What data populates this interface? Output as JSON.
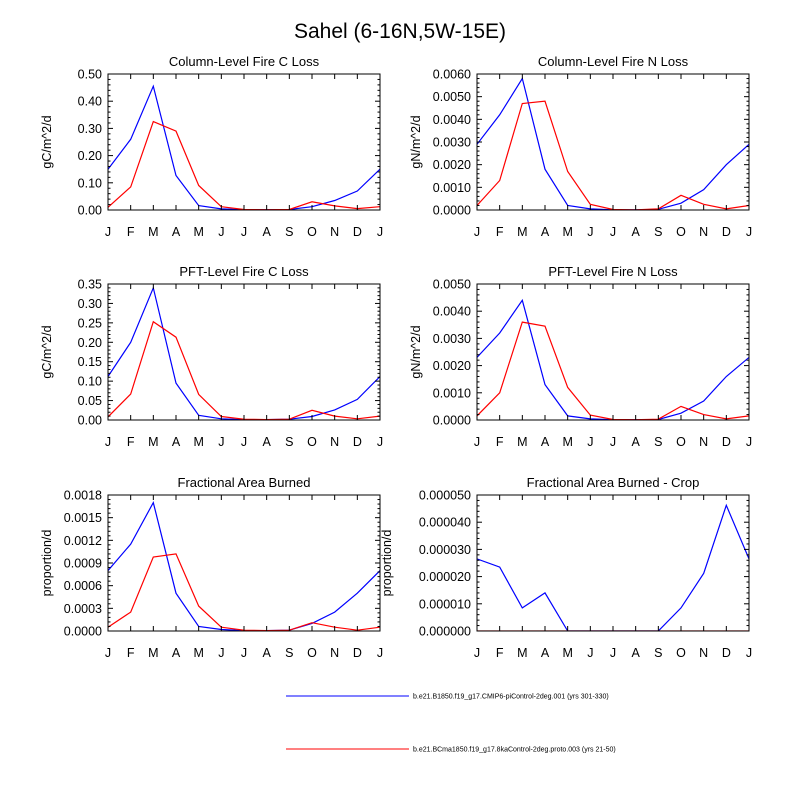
{
  "figure": {
    "title": "Sahel (6-16N,5W-15E)"
  },
  "colors": {
    "series1": "#0000ff",
    "series2": "#ff0000",
    "axis": "#000000"
  },
  "legend": {
    "placement": "bottom-right",
    "entries": [
      {
        "label": "b.e21.B1850.f19_g17.CMIP6-piControl-2deg.001 (yrs 301-330)",
        "color": "#0000ff"
      },
      {
        "label": "b.e21.BCma1850.f19_g17.8kaControl-2deg.proto.003 (yrs 21-50)",
        "color": "#ff0000"
      }
    ]
  },
  "chart_data": [
    {
      "type": "line",
      "title": "Column-Level Fire C Loss",
      "xlabel": "",
      "ylabel": "gC/m^2/d",
      "categories": [
        "J",
        "F",
        "M",
        "A",
        "M",
        "J",
        "J",
        "A",
        "S",
        "O",
        "N",
        "D",
        "J"
      ],
      "ylim": [
        0,
        0.5
      ],
      "yticks": [
        "0.00",
        "0.10",
        "0.20",
        "0.30",
        "0.40",
        "0.50"
      ],
      "series": [
        {
          "name": "b.e21.B1850.f19_g17.CMIP6-piControl-2deg.001 (yrs 301-330)",
          "values": [
            0.15,
            0.26,
            0.455,
            0.127,
            0.016,
            0.004,
            0.001,
            0.001,
            0.002,
            0.012,
            0.035,
            0.07,
            0.15
          ]
        },
        {
          "name": "b.e21.BCma1850.f19_g17.8kaControl-2deg.proto.003 (yrs 21-50)",
          "values": [
            0.01,
            0.085,
            0.325,
            0.29,
            0.09,
            0.012,
            0.002,
            0.001,
            0.002,
            0.03,
            0.015,
            0.005,
            0.012
          ]
        }
      ]
    },
    {
      "type": "line",
      "title": "Column-Level Fire N Loss",
      "xlabel": "",
      "ylabel": "gN/m^2/d",
      "categories": [
        "J",
        "F",
        "M",
        "A",
        "M",
        "J",
        "J",
        "A",
        "S",
        "O",
        "N",
        "D",
        "J"
      ],
      "ylim": [
        0,
        0.006
      ],
      "yticks": [
        "0.0000",
        "0.0010",
        "0.0020",
        "0.0030",
        "0.0040",
        "0.0050",
        "0.0060"
      ],
      "series": [
        {
          "name": "b.e21.B1850.f19_g17.CMIP6-piControl-2deg.001 (yrs 301-330)",
          "values": [
            0.0029,
            0.0042,
            0.0058,
            0.0018,
            0.0002,
            5e-05,
            1e-05,
            1e-05,
            3e-05,
            0.0003,
            0.0009,
            0.002,
            0.0029
          ]
        },
        {
          "name": "b.e21.BCma1850.f19_g17.8kaControl-2deg.proto.003 (yrs 21-50)",
          "values": [
            0.0002,
            0.0013,
            0.0047,
            0.0048,
            0.0017,
            0.00025,
            2e-05,
            1e-05,
            5e-05,
            0.00065,
            0.00025,
            5e-05,
            0.0002
          ]
        }
      ]
    },
    {
      "type": "line",
      "title": "PFT-Level Fire C Loss",
      "xlabel": "",
      "ylabel": "gC/m^2/d",
      "categories": [
        "J",
        "F",
        "M",
        "A",
        "M",
        "J",
        "J",
        "A",
        "S",
        "O",
        "N",
        "D",
        "J"
      ],
      "ylim": [
        0,
        0.35
      ],
      "yticks": [
        "0.00",
        "0.05",
        "0.10",
        "0.15",
        "0.20",
        "0.25",
        "0.30",
        "0.35"
      ],
      "series": [
        {
          "name": "b.e21.B1850.f19_g17.CMIP6-piControl-2deg.001 (yrs 301-330)",
          "values": [
            0.112,
            0.2,
            0.34,
            0.095,
            0.012,
            0.003,
            0.001,
            0.001,
            0.002,
            0.009,
            0.026,
            0.053,
            0.112
          ]
        },
        {
          "name": "b.e21.BCma1850.f19_g17.8kaControl-2deg.proto.003 (yrs 21-50)",
          "values": [
            0.008,
            0.067,
            0.253,
            0.213,
            0.066,
            0.009,
            0.002,
            0.001,
            0.002,
            0.025,
            0.01,
            0.003,
            0.01
          ]
        }
      ]
    },
    {
      "type": "line",
      "title": "PFT-Level Fire N Loss",
      "xlabel": "",
      "ylabel": "gN/m^2/d",
      "categories": [
        "J",
        "F",
        "M",
        "A",
        "M",
        "J",
        "J",
        "A",
        "S",
        "O",
        "N",
        "D",
        "J"
      ],
      "ylim": [
        0,
        0.005
      ],
      "yticks": [
        "0.0000",
        "0.0010",
        "0.0020",
        "0.0030",
        "0.0040",
        "0.0050"
      ],
      "series": [
        {
          "name": "b.e21.B1850.f19_g17.CMIP6-piControl-2deg.001 (yrs 301-330)",
          "values": [
            0.0023,
            0.0032,
            0.0044,
            0.0013,
            0.00015,
            4e-05,
            1e-05,
            1e-05,
            2e-05,
            0.00025,
            0.0007,
            0.0016,
            0.0023
          ]
        },
        {
          "name": "b.e21.BCma1850.f19_g17.8kaControl-2deg.proto.003 (yrs 21-50)",
          "values": [
            0.00015,
            0.001,
            0.0036,
            0.00345,
            0.0012,
            0.00018,
            2e-05,
            1e-05,
            3e-05,
            0.0005,
            0.0002,
            4e-05,
            0.00015
          ]
        }
      ]
    },
    {
      "type": "line",
      "title": "Fractional Area Burned",
      "xlabel": "",
      "ylabel": "proportion/d",
      "categories": [
        "J",
        "F",
        "M",
        "A",
        "M",
        "J",
        "J",
        "A",
        "S",
        "O",
        "N",
        "D",
        "J"
      ],
      "ylim": [
        0,
        0.0018
      ],
      "yticks": [
        "0.0000",
        "0.0003",
        "0.0006",
        "0.0009",
        "0.0012",
        "0.0015",
        "0.0018"
      ],
      "series": [
        {
          "name": "b.e21.B1850.f19_g17.CMIP6-piControl-2deg.001 (yrs 301-330)",
          "values": [
            0.0008,
            0.00115,
            0.0017,
            0.0005,
            6e-05,
            2e-05,
            5e-06,
            5e-06,
            1e-05,
            0.0001,
            0.00025,
            0.0005,
            0.0008
          ]
        },
        {
          "name": "b.e21.BCma1850.f19_g17.8kaControl-2deg.proto.003 (yrs 21-50)",
          "values": [
            5e-05,
            0.00025,
            0.00098,
            0.00102,
            0.00033,
            5e-05,
            1e-05,
            5e-06,
            1e-05,
            0.00011,
            5e-05,
            1e-05,
            5e-05
          ]
        }
      ]
    },
    {
      "type": "line",
      "title": "Fractional Area Burned - Crop",
      "xlabel": "",
      "ylabel": "proportion/d",
      "categories": [
        "J",
        "F",
        "M",
        "A",
        "M",
        "J",
        "J",
        "A",
        "S",
        "O",
        "N",
        "D",
        "J"
      ],
      "ylim": [
        0,
        5e-05
      ],
      "yticks": [
        "0.000000",
        "0.000010",
        "0.000020",
        "0.000030",
        "0.000040",
        "0.000050"
      ],
      "series": [
        {
          "name": "b.e21.B1850.f19_g17.CMIP6-piControl-2deg.001 (yrs 301-330)",
          "values": [
            2.65e-05,
            2.35e-05,
            8.5e-06,
            1.4e-05,
            0,
            0,
            0,
            0,
            0,
            8.5e-06,
            2.12e-05,
            4.62e-05,
            2.65e-05
          ]
        },
        {
          "name": "b.e21.BCma1850.f19_g17.8kaControl-2deg.proto.003 (yrs 21-50)",
          "values": [
            0,
            0,
            0,
            0,
            0,
            0,
            0,
            0,
            0,
            0,
            0,
            0,
            0
          ]
        }
      ]
    }
  ]
}
